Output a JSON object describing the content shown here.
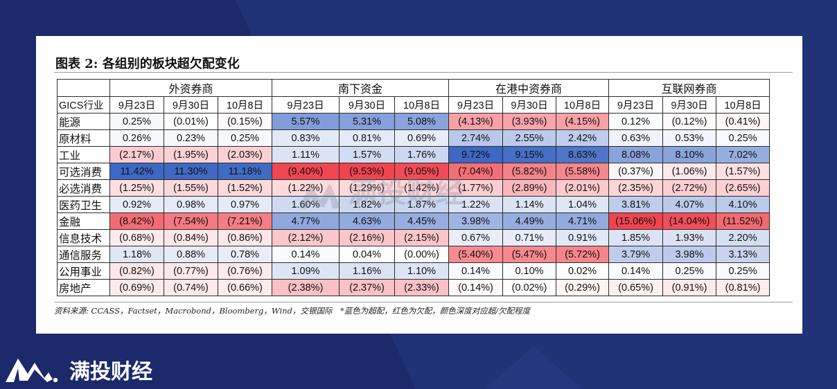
{
  "title": "图表 2: 各组别的板块超欠配变化",
  "header": {
    "first_col": "GICS行业",
    "groups": [
      "外资券商",
      "南下资金",
      "在港中资券商",
      "互联网券商"
    ],
    "dates": [
      "9月23日",
      "9月30日",
      "10月8日"
    ]
  },
  "rows": [
    {
      "industry": "能源",
      "values": [
        "0.25%",
        "(0.01%)",
        "(0.15%)",
        "5.57%",
        "5.31%",
        "5.08%",
        "(4.13%)",
        "(3.93%)",
        "(4.15%)",
        "0.12%",
        "(0.12%)",
        "(0.41%)"
      ]
    },
    {
      "industry": "原材料",
      "values": [
        "0.26%",
        "0.23%",
        "0.25%",
        "0.83%",
        "0.81%",
        "0.69%",
        "2.74%",
        "2.55%",
        "2.42%",
        "0.63%",
        "0.53%",
        "0.25%"
      ]
    },
    {
      "industry": "工业",
      "values": [
        "(2.17%)",
        "(1.95%)",
        "(2.03%)",
        "1.11%",
        "1.57%",
        "1.76%",
        "9.72%",
        "9.15%",
        "8.63%",
        "8.08%",
        "8.10%",
        "7.02%"
      ]
    },
    {
      "industry": "可选消费",
      "values": [
        "11.42%",
        "11.30%",
        "11.18%",
        "(9.40%)",
        "(9.53%)",
        "(9.05%)",
        "(7.04%)",
        "(5.82%)",
        "(5.58%)",
        "(0.37%)",
        "(1.06%)",
        "(1.57%)"
      ]
    },
    {
      "industry": "必选消费",
      "values": [
        "(1.25%)",
        "(1.55%)",
        "(1.52%)",
        "(1.22%)",
        "(1.29%)",
        "(1.42%)",
        "(1.77%)",
        "(2.89%)",
        "(2.01%)",
        "(2.35%)",
        "(2.72%)",
        "(2.65%)"
      ]
    },
    {
      "industry": "医药卫生",
      "values": [
        "0.92%",
        "0.98%",
        "0.97%",
        "1.60%",
        "1.82%",
        "1.87%",
        "1.22%",
        "1.14%",
        "1.04%",
        "3.81%",
        "4.07%",
        "4.10%"
      ]
    },
    {
      "industry": "金融",
      "values": [
        "(8.42%)",
        "(7.54%)",
        "(7.21%)",
        "4.77%",
        "4.63%",
        "4.45%",
        "3.98%",
        "4.49%",
        "4.71%",
        "(15.06%)",
        "(14.04%)",
        "(11.52%)"
      ]
    },
    {
      "industry": "信息技术",
      "values": [
        "(0.68%)",
        "(0.84%)",
        "(0.86%)",
        "(2.12%)",
        "(2.16%)",
        "(2.15%)",
        "0.67%",
        "0.71%",
        "0.91%",
        "1.85%",
        "1.93%",
        "2.20%"
      ]
    },
    {
      "industry": "通信服务",
      "values": [
        "1.18%",
        "0.88%",
        "0.78%",
        "0.14%",
        "0.04%",
        "(0.00%)",
        "(5.40%)",
        "(5.47%)",
        "(5.72%)",
        "3.79%",
        "3.98%",
        "3.13%"
      ]
    },
    {
      "industry": "公用事业",
      "values": [
        "(0.82%)",
        "(0.77%)",
        "(0.76%)",
        "1.09%",
        "1.16%",
        "1.10%",
        "0.14%",
        "0.10%",
        "0.02%",
        "0.14%",
        "0.25%",
        "0.25%"
      ]
    },
    {
      "industry": "房地产",
      "values": [
        "(0.69%)",
        "(0.74%)",
        "(0.66%)",
        "(2.38%)",
        "(2.37%)",
        "(2.33%)",
        "(0.14%)",
        "(0.02%)",
        "(0.29%)",
        "(0.65%)",
        "(0.91%)",
        "(0.81%)"
      ]
    }
  ],
  "footnote": "资料来源: CCASS，Factset，Macrobond，Bloomberg，Wind，交银国际　*蓝色为超配，红色为欠配，颜色深度对应超/欠配程度",
  "watermark": "满投财经",
  "brand": {
    "name": "满投财经"
  },
  "colors": {
    "background": "#1c2a6b",
    "overweight": "#3d68c4",
    "underweight": "#f0444f",
    "logo": "#ffffff"
  },
  "icons": {
    "brand_logo": "mountain-m-logo-icon"
  }
}
